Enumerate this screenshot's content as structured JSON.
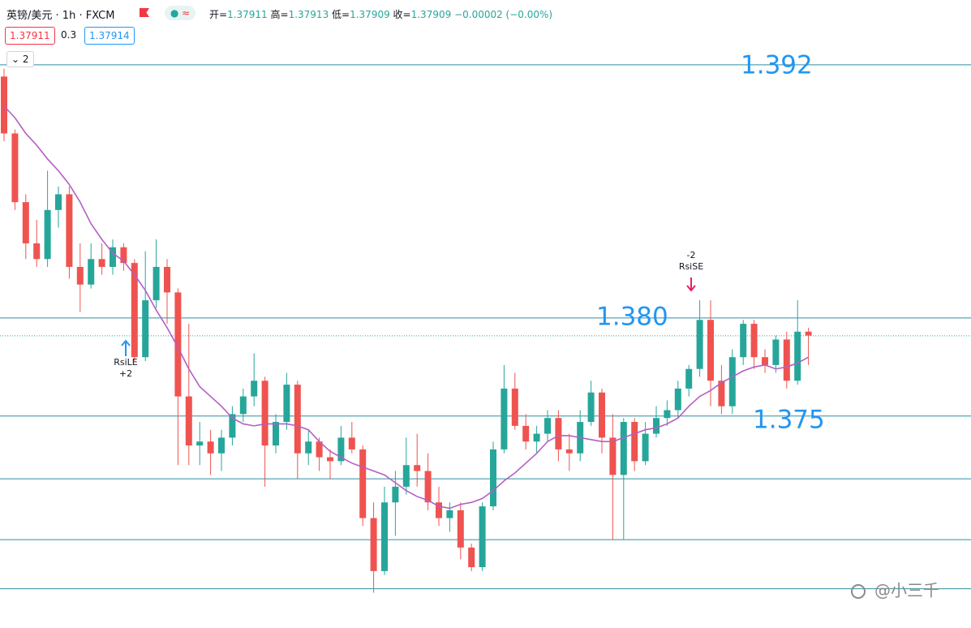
{
  "header": {
    "symbol": "英镑/美元",
    "interval": "1h",
    "source": "FXCM",
    "ohlc": [
      {
        "label": "开=",
        "value": "1.37911"
      },
      {
        "label": "高=",
        "value": "1.37913"
      },
      {
        "label": "低=",
        "value": "1.37909"
      },
      {
        "label": "收=",
        "value": "1.37909"
      }
    ],
    "change": "−0.00002 (−0.00%)",
    "bid": "1.37911",
    "spread": "0.3",
    "ask": "1.37914",
    "indicator_count": "2"
  },
  "chart_data": {
    "type": "candlestick",
    "ylim": [
      1.3642,
      1.3962
    ],
    "up_color": "#26a69a",
    "down_color": "#ef5350",
    "open": [
      1.3923,
      1.3894,
      1.3859,
      1.3838,
      1.383,
      1.3855,
      1.3863,
      1.3826,
      1.3817,
      1.383,
      1.3826,
      1.3836,
      1.3828,
      1.378,
      1.3809,
      1.3826,
      1.3813,
      1.376,
      1.3735,
      1.3737,
      1.3731,
      1.3739,
      1.3751,
      1.376,
      1.3768,
      1.3735,
      1.3747,
      1.3766,
      1.3731,
      1.3737,
      1.3729,
      1.3727,
      1.3739,
      1.3733,
      1.3698,
      1.3671,
      1.3706,
      1.3714,
      1.3725,
      1.3722,
      1.3706,
      1.3698,
      1.3702,
      1.3683,
      1.3673,
      1.3704,
      1.3733,
      1.3764,
      1.3745,
      1.3737,
      1.3741,
      1.3749,
      1.3733,
      1.3731,
      1.3747,
      1.3762,
      1.3739,
      1.372,
      1.3747,
      1.3727,
      1.3741,
      1.3749,
      1.3753,
      1.3764,
      1.3774,
      1.3799,
      1.3768,
      1.3755,
      1.378,
      1.3797,
      1.378,
      1.3776,
      1.3789,
      1.3768,
      1.3793
    ],
    "high": [
      1.3927,
      1.3896,
      1.3863,
      1.385,
      1.3875,
      1.3867,
      1.3867,
      1.3838,
      1.3838,
      1.3838,
      1.384,
      1.3838,
      1.383,
      1.3834,
      1.384,
      1.383,
      1.3815,
      1.3797,
      1.3747,
      1.3743,
      1.3743,
      1.3755,
      1.3764,
      1.3782,
      1.377,
      1.3751,
      1.3772,
      1.3768,
      1.3743,
      1.3739,
      1.3733,
      1.3745,
      1.3747,
      1.3735,
      1.3706,
      1.3714,
      1.3722,
      1.3739,
      1.3741,
      1.3731,
      1.3714,
      1.3706,
      1.3706,
      1.3685,
      1.3706,
      1.3737,
      1.3776,
      1.3772,
      1.3751,
      1.3745,
      1.3753,
      1.3753,
      1.3741,
      1.3753,
      1.3768,
      1.3764,
      1.3751,
      1.3749,
      1.3749,
      1.3747,
      1.3755,
      1.3758,
      1.3768,
      1.3776,
      1.3809,
      1.3809,
      1.3776,
      1.3784,
      1.3799,
      1.3799,
      1.3784,
      1.3791,
      1.3793,
      1.3809,
      1.3795
    ],
    "low": [
      1.389,
      1.3855,
      1.383,
      1.3826,
      1.3826,
      1.3846,
      1.382,
      1.3803,
      1.3815,
      1.3822,
      1.3822,
      1.3824,
      1.3778,
      1.3778,
      1.3805,
      1.3797,
      1.3725,
      1.3725,
      1.3725,
      1.372,
      1.3722,
      1.3735,
      1.3747,
      1.3755,
      1.3714,
      1.3731,
      1.3743,
      1.3718,
      1.3725,
      1.3722,
      1.3718,
      1.3725,
      1.3731,
      1.3694,
      1.366,
      1.3669,
      1.3689,
      1.371,
      1.3714,
      1.3702,
      1.3694,
      1.3691,
      1.3677,
      1.3671,
      1.3671,
      1.3702,
      1.3731,
      1.3743,
      1.3733,
      1.3731,
      1.3737,
      1.3727,
      1.3722,
      1.3727,
      1.3745,
      1.3731,
      1.3687,
      1.3687,
      1.3722,
      1.3725,
      1.3739,
      1.3745,
      1.3749,
      1.376,
      1.377,
      1.3755,
      1.3751,
      1.3751,
      1.3776,
      1.3774,
      1.3772,
      1.3772,
      1.3764,
      1.3766,
      1.3776
    ],
    "close": [
      1.3894,
      1.3859,
      1.3838,
      1.383,
      1.3855,
      1.3863,
      1.3826,
      1.3817,
      1.383,
      1.3826,
      1.3836,
      1.3828,
      1.378,
      1.3809,
      1.3826,
      1.3813,
      1.376,
      1.3735,
      1.3737,
      1.3731,
      1.3739,
      1.3751,
      1.376,
      1.3768,
      1.3735,
      1.3747,
      1.3766,
      1.3731,
      1.3737,
      1.3729,
      1.3727,
      1.3739,
      1.3733,
      1.3698,
      1.3671,
      1.3706,
      1.3714,
      1.3725,
      1.3722,
      1.3706,
      1.3698,
      1.3702,
      1.3683,
      1.3673,
      1.3704,
      1.3733,
      1.3764,
      1.3745,
      1.3737,
      1.3741,
      1.3749,
      1.3733,
      1.3731,
      1.3747,
      1.3762,
      1.3739,
      1.372,
      1.3747,
      1.3727,
      1.3741,
      1.3749,
      1.3753,
      1.3764,
      1.3774,
      1.3799,
      1.3768,
      1.3755,
      1.378,
      1.3797,
      1.378,
      1.3776,
      1.3789,
      1.3768,
      1.3793,
      1.3791
    ],
    "ma": {
      "color": "#b45fc4",
      "values": [
        1.3908,
        1.3902,
        1.3894,
        1.3888,
        1.3881,
        1.3875,
        1.3868,
        1.3859,
        1.3848,
        1.384,
        1.3833,
        1.3829,
        1.3822,
        1.3814,
        1.3804,
        1.3795,
        1.3785,
        1.3774,
        1.3765,
        1.376,
        1.3755,
        1.3749,
        1.3746,
        1.3745,
        1.3746,
        1.3746,
        1.3746,
        1.3745,
        1.3743,
        1.3737,
        1.3732,
        1.3729,
        1.3726,
        1.3724,
        1.3722,
        1.372,
        1.3716,
        1.3712,
        1.3709,
        1.3707,
        1.3704,
        1.3703,
        1.3705,
        1.3706,
        1.3708,
        1.3712,
        1.3717,
        1.3721,
        1.3726,
        1.3731,
        1.3737,
        1.374,
        1.374,
        1.3739,
        1.3738,
        1.3737,
        1.3737,
        1.3739,
        1.3741,
        1.3743,
        1.3744,
        1.3746,
        1.3749,
        1.3755,
        1.376,
        1.3763,
        1.3767,
        1.377,
        1.3773,
        1.3775,
        1.3776,
        1.3774,
        1.3775,
        1.3777,
        1.378
      ]
    },
    "hlines": {
      "color": "#2e8fa0",
      "values": [
        1.3929,
        1.38,
        1.375,
        1.3718,
        1.3687,
        1.3662
      ]
    },
    "last_price": 1.37909,
    "annotations": [
      "1.392",
      "1.380",
      "1.375"
    ],
    "signals": [
      {
        "label": "RsiLE",
        "qty": "+2"
      },
      {
        "label": "RsiSE",
        "qty": "-2"
      }
    ]
  },
  "watermark": "@小三千"
}
